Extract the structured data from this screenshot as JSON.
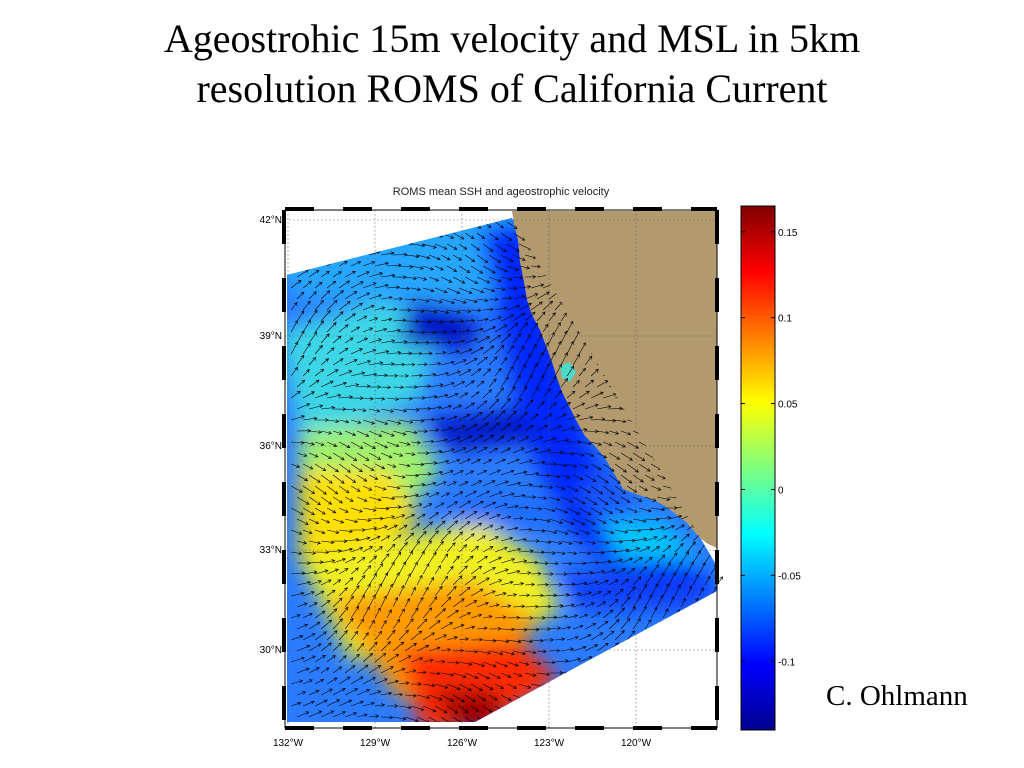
{
  "slide": {
    "title_line1": "Ageostrohic 15m velocity and MSL in 5km",
    "title_line2": "resolution ROMS of California Current",
    "credit": "C. Ohlmann"
  },
  "map": {
    "title": "ROMS mean SSH and ageostrophic velocity",
    "lat_labels": [
      "42°N",
      "39°N",
      "36°N",
      "33°N",
      "30°N"
    ],
    "lon_labels": [
      "132°W",
      "129°W",
      "126°W",
      "123°W",
      "120°W"
    ],
    "land_color": "#b29a6e",
    "ocean_background": "#ffffff",
    "arrow_color": "#000000"
  },
  "colorbar": {
    "colormap": "jet",
    "range": [
      -0.14,
      0.165
    ],
    "tick_values": [
      0.15,
      0.1,
      0.05,
      0,
      -0.05,
      -0.1
    ],
    "tick_labels": [
      "0.15",
      "0.1",
      "0.05",
      "0",
      "-0.05",
      "-0.1"
    ]
  }
}
